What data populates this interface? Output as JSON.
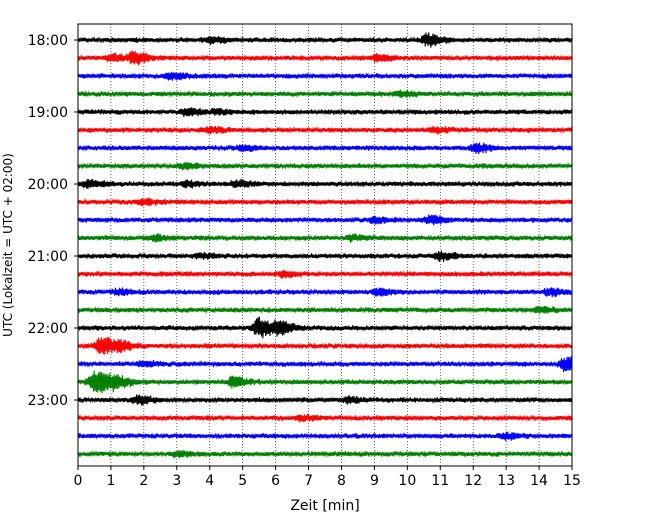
{
  "chart_data": {
    "type": "line",
    "title": "",
    "xlabel": "Zeit  [min]",
    "ylabel": "UTC (Lokalzeit = UTC + 02:00)",
    "xlim": [
      0,
      15
    ],
    "x_ticks": [
      0,
      1,
      2,
      3,
      4,
      5,
      6,
      7,
      8,
      9,
      10,
      11,
      12,
      13,
      14,
      15
    ],
    "x_tick_labels": [
      "0",
      "1",
      "2",
      "3",
      "4",
      "5",
      "6",
      "7",
      "8",
      "9",
      "10",
      "11",
      "12",
      "13",
      "14",
      "15"
    ],
    "y_tick_labels": [
      "18:00",
      "19:00",
      "20:00",
      "21:00",
      "22:00",
      "23:00"
    ],
    "grid": "vertical dotted lines at each minute",
    "trace_interval_minutes": 15,
    "trace_colors": [
      "#000000",
      "#ff0000",
      "#0000ff",
      "#008000"
    ],
    "traces": [
      {
        "start": "18:00",
        "events": [
          {
            "x": 10.6,
            "amp": 0.5
          },
          {
            "x": 4.0,
            "amp": 0.2
          }
        ]
      },
      {
        "start": "18:15",
        "events": [
          {
            "x": 1.7,
            "amp": 0.45
          },
          {
            "x": 1.0,
            "amp": 0.3
          },
          {
            "x": 9.1,
            "amp": 0.25
          }
        ]
      },
      {
        "start": "18:30",
        "events": [
          {
            "x": 2.8,
            "amp": 0.25
          }
        ]
      },
      {
        "start": "18:45",
        "events": [
          {
            "x": 9.8,
            "amp": 0.2
          }
        ]
      },
      {
        "start": "19:00",
        "events": [
          {
            "x": 3.3,
            "amp": 0.3
          },
          {
            "x": 4.2,
            "amp": 0.2
          }
        ]
      },
      {
        "start": "19:15",
        "events": [
          {
            "x": 4.0,
            "amp": 0.25
          },
          {
            "x": 10.8,
            "amp": 0.2
          }
        ]
      },
      {
        "start": "19:30",
        "events": [
          {
            "x": 12.1,
            "amp": 0.35
          },
          {
            "x": 5.0,
            "amp": 0.2
          }
        ]
      },
      {
        "start": "19:45",
        "events": [
          {
            "x": 3.2,
            "amp": 0.2
          }
        ]
      },
      {
        "start": "20:00",
        "events": [
          {
            "x": 0.3,
            "amp": 0.3
          },
          {
            "x": 4.8,
            "amp": 0.25
          },
          {
            "x": 3.3,
            "amp": 0.2
          }
        ]
      },
      {
        "start": "20:15",
        "events": [
          {
            "x": 2.0,
            "amp": 0.2
          }
        ]
      },
      {
        "start": "20:30",
        "events": [
          {
            "x": 10.7,
            "amp": 0.3
          },
          {
            "x": 9.0,
            "amp": 0.2
          }
        ]
      },
      {
        "start": "20:45",
        "events": [
          {
            "x": 8.3,
            "amp": 0.2
          },
          {
            "x": 2.3,
            "amp": 0.2
          }
        ]
      },
      {
        "start": "21:00",
        "events": [
          {
            "x": 11.0,
            "amp": 0.35
          },
          {
            "x": 3.7,
            "amp": 0.2
          }
        ]
      },
      {
        "start": "21:15",
        "events": [
          {
            "x": 6.2,
            "amp": 0.2
          }
        ]
      },
      {
        "start": "21:30",
        "events": [
          {
            "x": 9.1,
            "amp": 0.25
          },
          {
            "x": 14.3,
            "amp": 0.3
          },
          {
            "x": 1.2,
            "amp": 0.2
          }
        ]
      },
      {
        "start": "21:45",
        "events": [
          {
            "x": 14.0,
            "amp": 0.2
          }
        ]
      },
      {
        "start": "22:00",
        "events": [
          {
            "x": 5.5,
            "amp": 0.8
          },
          {
            "x": 6.1,
            "amp": 0.5
          }
        ]
      },
      {
        "start": "22:15",
        "events": [
          {
            "x": 0.7,
            "amp": 0.75
          },
          {
            "x": 1.3,
            "amp": 0.3
          }
        ]
      },
      {
        "start": "22:30",
        "events": [
          {
            "x": 14.8,
            "amp": 0.6
          },
          {
            "x": 2.0,
            "amp": 0.2
          }
        ]
      },
      {
        "start": "22:45",
        "events": [
          {
            "x": 0.5,
            "amp": 1.0
          },
          {
            "x": 1.1,
            "amp": 0.5
          },
          {
            "x": 4.7,
            "amp": 0.4
          }
        ]
      },
      {
        "start": "23:00",
        "events": [
          {
            "x": 1.8,
            "amp": 0.3
          },
          {
            "x": 8.2,
            "amp": 0.2
          }
        ]
      },
      {
        "start": "23:15",
        "events": [
          {
            "x": 6.8,
            "amp": 0.2
          }
        ]
      },
      {
        "start": "23:30",
        "events": [
          {
            "x": 13.0,
            "amp": 0.2
          }
        ]
      },
      {
        "start": "23:45",
        "events": [
          {
            "x": 3.0,
            "amp": 0.2
          }
        ]
      }
    ]
  }
}
